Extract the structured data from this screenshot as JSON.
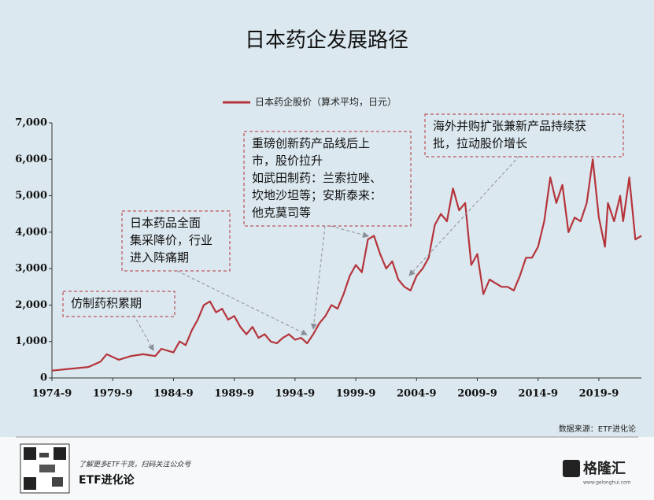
{
  "chart_data": {
    "type": "line",
    "title": "日本药企发展路径",
    "series": [
      {
        "name": "日本药企股价（算术平均，日元）",
        "color": "#b5343c",
        "x": [
          "1974-9",
          "1976-3",
          "1977-9",
          "1978-9",
          "1979-3",
          "1980-3",
          "1981-3",
          "1982-3",
          "1983-3",
          "1983-9",
          "1984-9",
          "1985-3",
          "1985-9",
          "1986-3",
          "1986-9",
          "1987-3",
          "1987-9",
          "1988-3",
          "1988-9",
          "1989-3",
          "1989-9",
          "1990-3",
          "1990-9",
          "1991-3",
          "1991-9",
          "1992-3",
          "1992-9",
          "1993-3",
          "1993-9",
          "1994-3",
          "1994-9",
          "1995-3",
          "1995-9",
          "1996-3",
          "1996-9",
          "1997-3",
          "1997-9",
          "1998-3",
          "1998-9",
          "1999-3",
          "1999-9",
          "2000-3",
          "2000-9",
          "2001-3",
          "2001-9",
          "2002-3",
          "2002-9",
          "2003-3",
          "2003-9",
          "2004-3",
          "2004-9",
          "2005-3",
          "2005-9",
          "2006-3",
          "2006-9",
          "2007-3",
          "2007-9",
          "2008-3",
          "2008-9",
          "2009-3",
          "2009-9",
          "2010-3",
          "2010-9",
          "2011-3",
          "2011-9",
          "2012-3",
          "2012-9",
          "2013-3",
          "2013-9",
          "2014-3",
          "2014-9",
          "2015-3",
          "2015-9",
          "2016-3",
          "2016-9",
          "2017-3",
          "2017-9",
          "2018-3",
          "2018-9",
          "2019-3",
          "2019-9",
          "2020-3",
          "2020-6",
          "2020-12",
          "2021-6",
          "2021-9",
          "2022-3",
          "2022-9",
          "2023-3"
        ],
        "values": [
          200,
          250,
          300,
          450,
          650,
          500,
          600,
          650,
          600,
          800,
          700,
          1000,
          900,
          1300,
          1600,
          2000,
          2100,
          1800,
          1900,
          1600,
          1700,
          1400,
          1200,
          1400,
          1100,
          1200,
          1000,
          950,
          1100,
          1200,
          1050,
          1100,
          950,
          1200,
          1500,
          1700,
          2000,
          1900,
          2300,
          2800,
          3100,
          2900,
          3800,
          3900,
          3400,
          3000,
          3200,
          2700,
          2500,
          2400,
          2800,
          3000,
          3300,
          4200,
          4500,
          4300,
          5200,
          4600,
          4800,
          3100,
          3400,
          2300,
          2700,
          2600,
          2500,
          2500,
          2400,
          2800,
          3300,
          3300,
          3600,
          4300,
          5500,
          4800,
          5300,
          4000,
          4400,
          4300,
          4800,
          6000,
          4400,
          3600,
          4800,
          4300,
          5000,
          4300,
          5500,
          3800,
          3900
        ]
      }
    ],
    "xlim": [
      "1974-9",
      "2023-3"
    ],
    "xticks": [
      "1974-9",
      "1979-9",
      "1984-9",
      "1989-9",
      "1994-9",
      "1999-9",
      "2004-9",
      "2009-9",
      "2014-9",
      "2019-9"
    ],
    "ylim": [
      0,
      7000
    ],
    "yticks": [
      0,
      {
        "value": 1000,
        "label": "1,000"
      },
      {
        "value": 2000,
        "label": "2,000"
      },
      {
        "value": 3000,
        "label": "3,000"
      },
      {
        "value": 4000,
        "label": "4,000"
      },
      {
        "value": 5000,
        "label": "5,000"
      },
      {
        "value": 6000,
        "label": "6,000"
      },
      {
        "value": 7000,
        "label": "7,000"
      }
    ],
    "annotations": [
      {
        "lines": [
          "仿制药积累期"
        ]
      },
      {
        "lines": [
          "日本药品全面",
          "集采降价，行业",
          "进入阵痛期"
        ]
      },
      {
        "lines": [
          "重磅创新药产品线后上",
          "市，股价拉升",
          "如武田制药：兰索拉唑、",
          "坎地沙坦等；安斯泰来：",
          "他克莫司等"
        ]
      },
      {
        "lines": [
          "海外并购扩张兼新产品持续获",
          "批，拉动股价增长"
        ]
      }
    ],
    "source": "数据来源：ETF进化论"
  },
  "footer": {
    "tagline": "了解更多ETF干货，扫码关注公众号",
    "account": "ETF进化论",
    "brand": "格隆汇",
    "site": "www.gelonghui.com"
  }
}
